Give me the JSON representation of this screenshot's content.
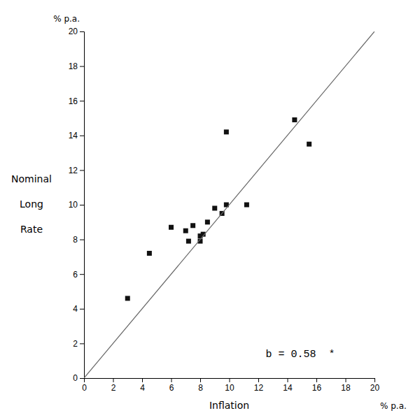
{
  "chart_data": {
    "type": "scatter",
    "xlabel": "Inflation",
    "ylabel": [
      "Nominal",
      "Long",
      "Rate"
    ],
    "xunit": "% p.a.",
    "yunit": "% p.a.",
    "series": [
      {
        "type": "scatter",
        "marker": "square",
        "color": "#111111",
        "x": [
          3.0,
          4.5,
          6.0,
          7.0,
          7.2,
          7.5,
          8.0,
          8.0,
          8.2,
          8.5,
          9.0,
          9.5,
          9.8,
          9.8,
          11.2,
          14.5,
          15.5
        ],
        "values": [
          4.6,
          7.2,
          8.7,
          8.5,
          7.9,
          8.8,
          8.2,
          7.9,
          8.3,
          9.0,
          9.8,
          9.5,
          10.0,
          14.2,
          10.0,
          14.9,
          13.5
        ]
      },
      {
        "type": "line",
        "color": "#666666",
        "x": [
          0,
          20
        ],
        "values": [
          0,
          20
        ]
      }
    ],
    "annotations": [
      {
        "text": "b = 0.58  *",
        "x": 12.5,
        "y": 1.2
      }
    ],
    "xlim": [
      0,
      20
    ],
    "ylim": [
      0,
      20
    ],
    "xticks": [
      0,
      2,
      4,
      6,
      8,
      10,
      12,
      14,
      16,
      18,
      20
    ],
    "yticks": [
      0,
      2,
      4,
      6,
      8,
      10,
      12,
      14,
      16,
      18,
      20
    ],
    "grid": false
  }
}
